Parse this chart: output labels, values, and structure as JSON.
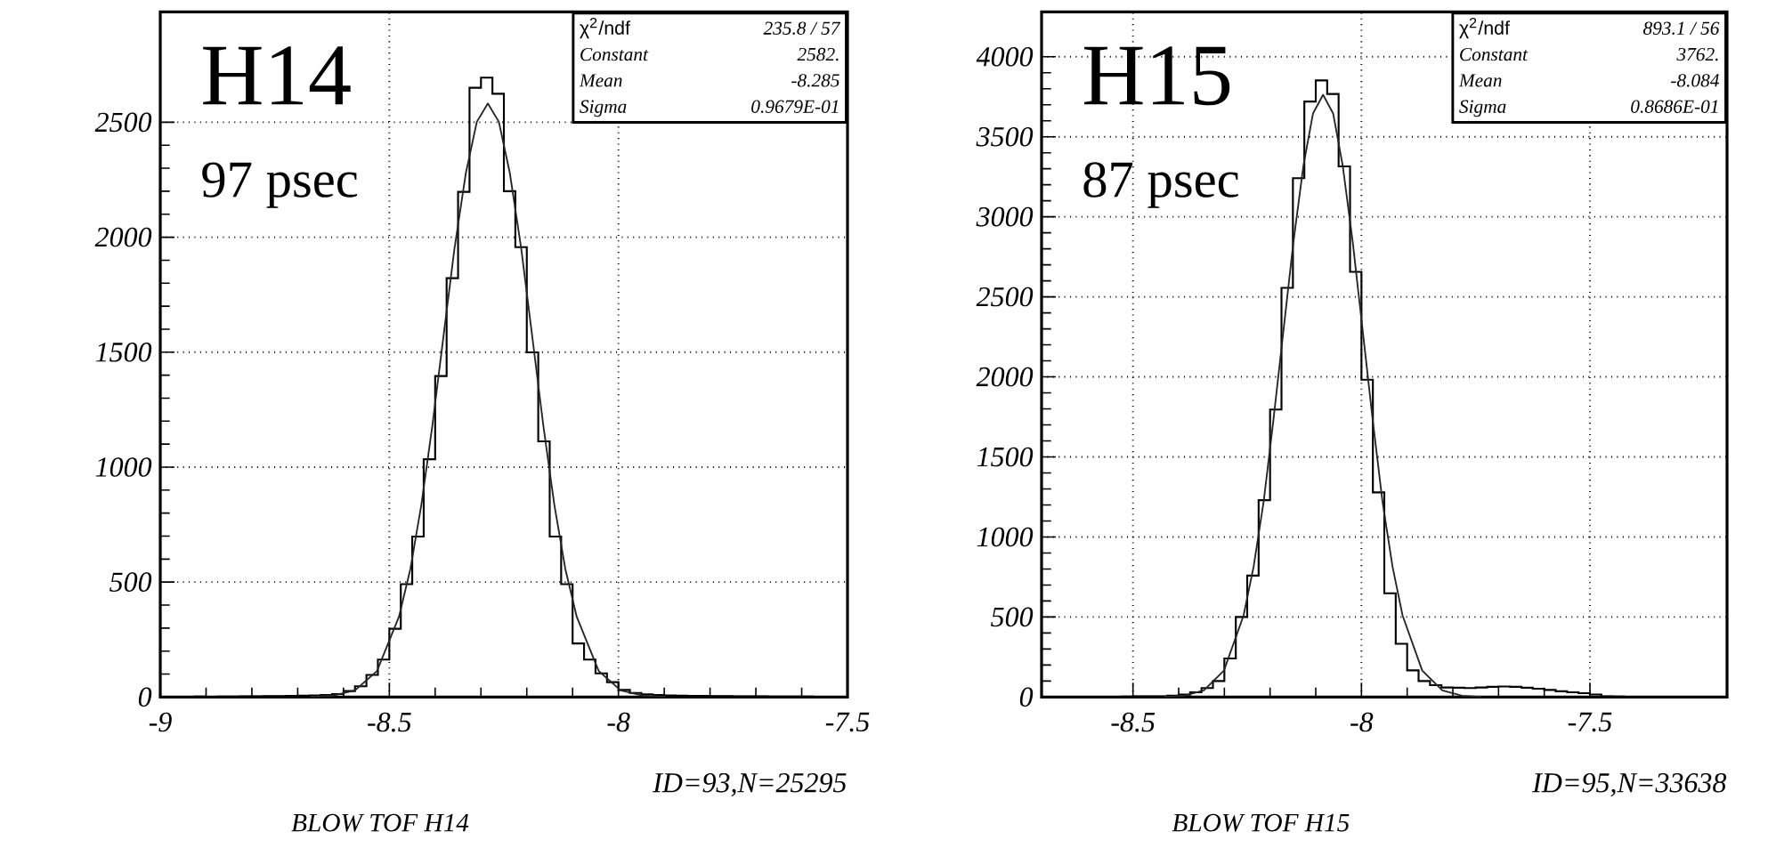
{
  "chart_data": [
    {
      "type": "histogram",
      "title": "BLOW TOF H14",
      "color": "#000000",
      "annotations": [
        "H14",
        "97 psec",
        "χ$^{2}$/ndf",
        "235.8  /  57",
        "Constant",
        "2582.",
        "Mean",
        "-8.285",
        "Sigma",
        "0.9679E-01",
        "ID=93,N=25295"
      ],
      "bins": [
        -9,
        -8.975,
        -8.95,
        -8.925,
        -8.9,
        -8.875,
        -8.85,
        -8.825,
        -8.8,
        -8.775,
        -8.75,
        -8.725,
        -8.7,
        -8.675,
        -8.65,
        -8.625,
        -8.6,
        -8.575,
        -8.55,
        -8.525,
        -8.5,
        -8.475,
        -8.45,
        -8.425,
        -8.4,
        -8.375,
        -8.35,
        -8.325,
        -8.3,
        -8.275,
        -8.25,
        -8.225,
        -8.2,
        -8.175,
        -8.15,
        -8.125,
        -8.1,
        -8.075,
        -8.05,
        -8.025,
        -8,
        -7.975,
        -7.95,
        -7.925,
        -7.9,
        -7.875,
        -7.85,
        -7.825,
        -7.8,
        -7.775,
        -7.75,
        -7.725,
        -7.7,
        -7.675,
        -7.65,
        -7.625,
        -7.6,
        -7.575,
        -7.55,
        -7.525,
        -7.5
      ],
      "values": [
        1,
        1,
        1,
        2,
        1,
        2,
        2,
        3,
        3,
        4,
        4,
        5,
        6,
        7,
        9,
        13,
        26,
        47,
        96,
        163,
        297,
        491,
        698,
        1034,
        1396,
        1822,
        2197,
        2650,
        2694,
        2624,
        2200,
        1957,
        1499,
        1112,
        698,
        491,
        233,
        163,
        103,
        65,
        31,
        18,
        12,
        9,
        7,
        6,
        5,
        5,
        4,
        4,
        3,
        3,
        3,
        2,
        2,
        2,
        2,
        1,
        1,
        1
      ],
      "xlim": [
        -9,
        -7.5
      ],
      "xticks": [
        -9,
        -8.5,
        -8,
        -7.5
      ],
      "ylim": [
        0,
        2980
      ],
      "yticks": [
        0,
        500,
        1000,
        1500,
        2000,
        2500
      ],
      "grid": true,
      "series": [
        {
          "type": "line",
          "color": "#262626",
          "x": [
            -8.672,
            -8.624,
            -8.575,
            -8.527,
            -8.479,
            -8.454,
            -8.43,
            -8.406,
            -8.382,
            -8.358,
            -8.333,
            -8.309,
            -8.285,
            -8.261,
            -8.237,
            -8.212,
            -8.188,
            -8.164,
            -8.14,
            -8.116,
            -8.091,
            -8.043,
            -7.995,
            -7.946,
            -7.898
          ],
          "values": [
            1,
            6,
            29,
            113,
            349,
            558,
            838,
            1182,
            1566,
            1949,
            2279,
            2502,
            2582,
            2502,
            2279,
            1949,
            1566,
            1182,
            838,
            558,
            349,
            113,
            29,
            6,
            1
          ]
        }
      ]
    },
    {
      "type": "histogram",
      "title": "BLOW TOF H15",
      "color": "#000000",
      "annotations": [
        "H15",
        "87 psec",
        "χ$^{2}$/ndf",
        "893.1  /  56",
        "Constant",
        "3762.",
        "Mean",
        "-8.084",
        "Sigma",
        "0.8686E-01",
        "ID=95,N=33638"
      ],
      "bins": [
        -8.7,
        -8.675,
        -8.65,
        -8.625,
        -8.6,
        -8.575,
        -8.55,
        -8.525,
        -8.5,
        -8.475,
        -8.45,
        -8.425,
        -8.4,
        -8.375,
        -8.35,
        -8.325,
        -8.3,
        -8.275,
        -8.25,
        -8.225,
        -8.2,
        -8.175,
        -8.15,
        -8.125,
        -8.1,
        -8.075,
        -8.05,
        -8.025,
        -8,
        -7.975,
        -7.95,
        -7.925,
        -7.9,
        -7.875,
        -7.85,
        -7.825,
        -7.8,
        -7.775,
        -7.75,
        -7.725,
        -7.7,
        -7.675,
        -7.65,
        -7.625,
        -7.6,
        -7.575,
        -7.55,
        -7.525,
        -7.5,
        -7.475,
        -7.45,
        -7.425,
        -7.4,
        -7.375,
        -7.35,
        -7.325,
        -7.3,
        -7.275,
        -7.25,
        -7.225,
        -7.2
      ],
      "values": [
        1,
        1,
        1,
        1,
        2,
        2,
        2,
        3,
        4,
        5,
        5,
        8,
        15,
        30,
        56,
        100,
        241,
        500,
        759,
        1230,
        1796,
        2556,
        3241,
        3720,
        3852,
        3767,
        3315,
        2656,
        1982,
        1278,
        648,
        333,
        167,
        100,
        74,
        60,
        58,
        56,
        60,
        64,
        66,
        64,
        58,
        52,
        44,
        36,
        30,
        24,
        16,
        4,
        3,
        2,
        2,
        1,
        1,
        1,
        1,
        1,
        1,
        0
      ],
      "xlim": [
        -8.7,
        -7.2
      ],
      "xticks": [
        -8.5,
        -8,
        -7.5
      ],
      "ylim": [
        0,
        4280
      ],
      "yticks": [
        0,
        500,
        1000,
        1500,
        2000,
        2500,
        3000,
        3500,
        4000
      ],
      "grid": true,
      "series": [
        {
          "type": "line",
          "color": "#262626",
          "x": [
            -8.431,
            -8.388,
            -8.345,
            -8.301,
            -8.258,
            -8.236,
            -8.214,
            -8.193,
            -8.171,
            -8.149,
            -8.127,
            -8.106,
            -8.084,
            -8.062,
            -8.041,
            -8.019,
            -7.997,
            -7.975,
            -7.954,
            -7.932,
            -7.91,
            -7.867,
            -7.823,
            -7.78,
            -7.737
          ],
          "values": [
            1,
            8,
            42,
            165,
            509,
            814,
            1222,
            1722,
            2282,
            2840,
            3320,
            3646,
            3762,
            3646,
            3320,
            2840,
            2282,
            1722,
            1222,
            814,
            509,
            165,
            42,
            8,
            1
          ]
        }
      ]
    }
  ]
}
